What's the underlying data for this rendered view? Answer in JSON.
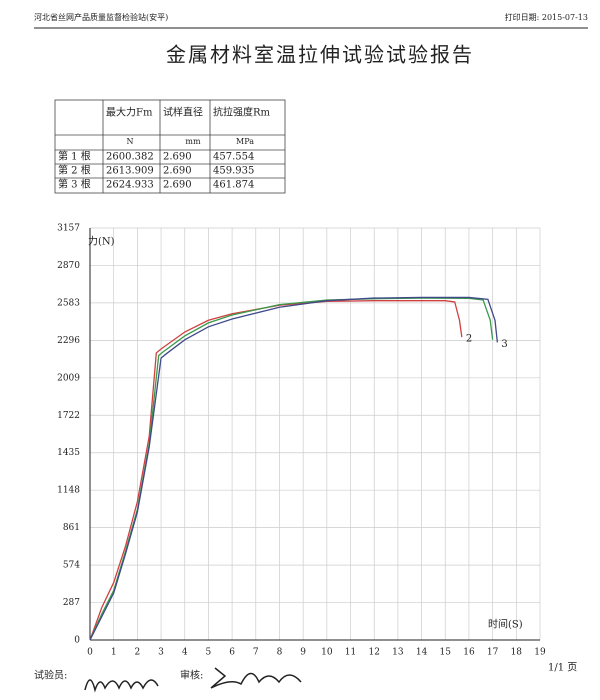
{
  "header": {
    "org": "河北省丝网产品质量监督检验站(安平)",
    "print_date": "打印日期: 2015-07-13",
    "title": "金属材料室温拉伸试验试验报告"
  },
  "table": {
    "header": [
      "最大力Fm",
      "试样直径",
      "抗拉强度Rm"
    ],
    "units": [
      "N",
      "mm",
      "MPa"
    ],
    "rows": [
      [
        "第 1 根",
        "2600.382",
        "2.690",
        "457.554"
      ],
      [
        "第 2 根",
        "2613.909",
        "2.690",
        "459.935"
      ],
      [
        "第 3 根",
        "2624.933",
        "2.690",
        "461.874"
      ]
    ]
  },
  "chart_data": {
    "type": "line",
    "y_label": "力(N)",
    "x_label": "时间(S)",
    "xlim": [
      0,
      19
    ],
    "ylim": [
      0,
      3157
    ],
    "xticks": [
      0,
      1,
      2,
      3,
      4,
      5,
      6,
      7,
      8,
      9,
      10,
      11,
      12,
      13,
      14,
      15,
      16,
      17,
      18,
      19
    ],
    "yticks": [
      0,
      287,
      574,
      861,
      1148,
      1435,
      1722,
      2009,
      2296,
      2583,
      2870,
      3157
    ],
    "grid": true,
    "series": [
      {
        "name": "2",
        "color": "#d04040",
        "x": [
          0,
          0.5,
          1,
          1.5,
          2,
          2.5,
          2.8,
          3,
          4,
          5,
          6,
          8,
          10,
          12,
          14,
          15,
          15.4,
          15.6,
          15.7
        ],
        "values": [
          0,
          250,
          440,
          720,
          1060,
          1560,
          2200,
          2230,
          2360,
          2450,
          2500,
          2565,
          2595,
          2600,
          2600,
          2600,
          2590,
          2450,
          2321
        ]
      },
      {
        "color": "#3a9a4a",
        "x": [
          0,
          0.5,
          1,
          1.5,
          2,
          2.5,
          2.9,
          3.1,
          4,
          5,
          6,
          8,
          10,
          12,
          14,
          16,
          16.6,
          16.9,
          17.0
        ],
        "values": [
          0,
          200,
          380,
          680,
          1000,
          1500,
          2180,
          2210,
          2330,
          2430,
          2490,
          2570,
          2605,
          2615,
          2620,
          2618,
          2605,
          2450,
          2300
        ]
      },
      {
        "name": "3",
        "color": "#404a8a",
        "x": [
          0,
          0.5,
          1,
          1.5,
          2,
          2.5,
          3,
          3.2,
          4,
          5,
          6,
          8,
          10,
          12,
          14,
          16,
          16.8,
          17.1,
          17.2
        ],
        "values": [
          0,
          180,
          360,
          660,
          980,
          1480,
          2160,
          2190,
          2300,
          2400,
          2460,
          2550,
          2600,
          2620,
          2625,
          2625,
          2610,
          2450,
          2280
        ]
      }
    ]
  }
}
